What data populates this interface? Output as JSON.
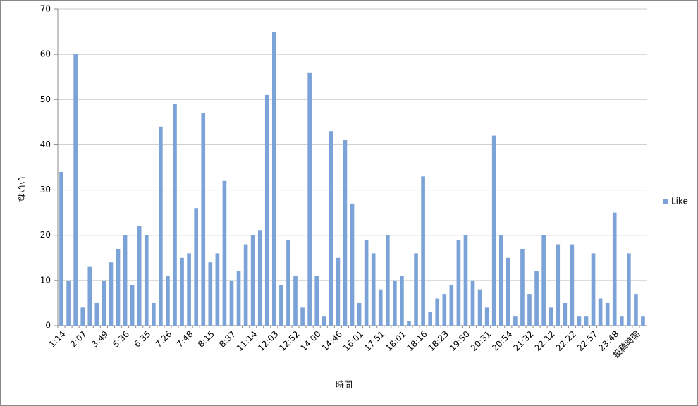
{
  "chart_data": {
    "type": "bar",
    "x_label": "時間",
    "y_label": "いいね",
    "categories": [
      "1:14",
      null,
      null,
      "2:07",
      null,
      null,
      "3:49",
      null,
      null,
      "5:36",
      null,
      null,
      "6:35",
      null,
      null,
      "7:26",
      null,
      null,
      "7:48",
      null,
      null,
      "8:15",
      null,
      null,
      "8:37",
      null,
      null,
      "11:14",
      null,
      null,
      "12:03",
      null,
      null,
      "12:52",
      null,
      null,
      "14:00",
      null,
      null,
      "14:46",
      null,
      null,
      "16:01",
      null,
      null,
      "17:51",
      null,
      null,
      "18:01",
      null,
      null,
      "18:16",
      null,
      null,
      "18:23",
      null,
      null,
      "19:50",
      null,
      null,
      "20:31",
      null,
      null,
      "20:54",
      null,
      null,
      "21:32",
      null,
      null,
      "22:12",
      null,
      null,
      "22:22",
      null,
      null,
      "22:57",
      null,
      null,
      "23:48",
      null,
      null,
      "投稿時間",
      null
    ],
    "series": [
      {
        "name": "Like",
        "color": "#7ba3d7",
        "values": [
          34,
          10,
          60,
          4,
          13,
          5,
          10,
          14,
          17,
          20,
          9,
          22,
          20,
          5,
          44,
          11,
          49,
          15,
          16,
          26,
          47,
          14,
          16,
          32,
          10,
          12,
          18,
          20,
          21,
          51,
          65,
          9,
          19,
          11,
          4,
          56,
          11,
          2,
          43,
          15,
          41,
          27,
          5,
          19,
          16,
          8,
          20,
          10,
          11,
          1,
          16,
          33,
          3,
          6,
          7,
          9,
          19,
          20,
          10,
          8,
          4,
          42,
          20,
          15,
          2,
          17,
          7,
          12,
          20,
          4,
          18,
          5,
          18,
          2,
          2,
          16,
          6,
          5,
          25,
          2,
          16,
          7,
          2
        ]
      }
    ],
    "ylim": [
      0,
      70
    ],
    "yticks": [
      0,
      10,
      20,
      30,
      40,
      50,
      60,
      70
    ],
    "grid": true,
    "legend": "right"
  }
}
